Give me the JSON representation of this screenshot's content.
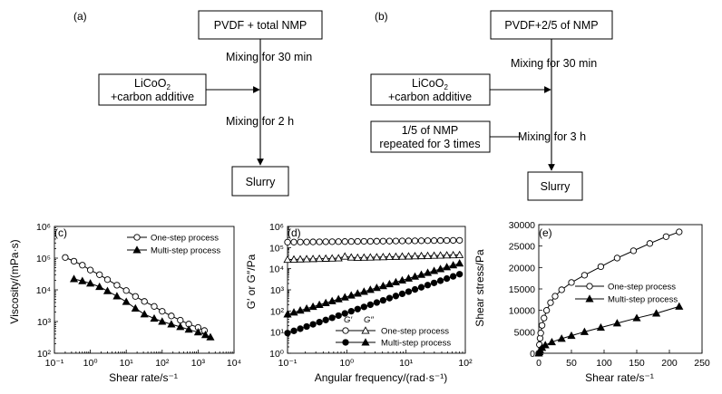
{
  "flowcharts": [
    {
      "panel_label": "(a)",
      "top_box": "PVDF + total NMP",
      "step1": "Mixing for 30 min",
      "side_box_1": [
        "LiCoO",
        "2",
        "+carbon additive"
      ],
      "step2": "Mixing for 2 h",
      "end_box": "Slurry"
    },
    {
      "panel_label": "(b)",
      "top_box": "PVDF+2/5 of NMP",
      "step1": "Mixing for 30 min",
      "side_box_1": [
        "LiCoO",
        "2",
        "+carbon additive"
      ],
      "side_box_2": [
        "1/5 of NMP",
        "repeated for 3 times"
      ],
      "step2": "Mixing for 3 h",
      "end_box": "Slurry"
    }
  ],
  "chart_data": [
    {
      "panel_label": "(c)",
      "type": "line",
      "xscale": "log",
      "yscale": "log",
      "xlim": [
        0.1,
        10000
      ],
      "ylim": [
        100,
        1000000
      ],
      "xlabel": "Shear rate/s⁻¹",
      "ylabel": "Viscosity/(mPa·s)",
      "xticks": [
        "10⁻¹",
        "10⁰",
        "10¹",
        "10²",
        "10³",
        "10⁴"
      ],
      "yticks": [
        "10²",
        "10³",
        "10⁴",
        "10⁵",
        "10⁶"
      ],
      "legend_position": "top-right",
      "series": [
        {
          "name": "One-step process",
          "marker": "open-circle",
          "x": [
            0.2,
            0.35,
            0.6,
            1,
            1.8,
            3,
            5.5,
            10,
            18,
            32,
            60,
            100,
            180,
            320,
            550,
            1000,
            1500
          ],
          "y": [
            105000,
            80000,
            60000,
            42000,
            30000,
            21000,
            14000,
            9500,
            6200,
            4300,
            3000,
            2100,
            1500,
            1100,
            830,
            650,
            520
          ]
        },
        {
          "name": "Multi-step process",
          "marker": "filled-triangle",
          "x": [
            0.35,
            0.6,
            1,
            1.8,
            3,
            5.5,
            10,
            18,
            32,
            60,
            100,
            180,
            320,
            550,
            1000,
            1600,
            2200
          ],
          "y": [
            22000,
            19000,
            16000,
            12500,
            9200,
            6300,
            4200,
            2600,
            1700,
            1250,
            1000,
            820,
            680,
            560,
            460,
            380,
            320
          ]
        }
      ]
    },
    {
      "panel_label": "(d)",
      "type": "line",
      "xscale": "log",
      "yscale": "log",
      "xlim": [
        0.1,
        100
      ],
      "ylim": [
        1,
        1000000
      ],
      "xlabel": "Angular frequency/(rad·s⁻¹)",
      "ylabel": "G′ or G″/Pa",
      "xticks": [
        "10⁻¹",
        "10⁰",
        "10¹",
        "10²"
      ],
      "yticks": [
        "10⁰",
        "10¹",
        "10²",
        "10³",
        "10⁴",
        "10⁵",
        "10⁶"
      ],
      "legend_position": "bottom-right",
      "legend_header": [
        "G′",
        "G″"
      ],
      "legend_rows": [
        "One-step process",
        "Multi-step process"
      ],
      "series": [
        {
          "name": "One-step process G′",
          "marker": "open-circle",
          "x_range": [
            0.1,
            80
          ],
          "y_start": 180000,
          "y_end": 220000
        },
        {
          "name": "One-step process G″",
          "marker": "open-triangle",
          "x_range": [
            0.1,
            80
          ],
          "y_start": 27000,
          "y_end": 45000,
          "bump_at": 1,
          "bump_value": 40000
        },
        {
          "name": "Multi-step process G′",
          "marker": "filled-circle",
          "x_range": [
            0.1,
            80
          ],
          "y_start": 9,
          "y_end": 5500
        },
        {
          "name": "Multi-step process G″",
          "marker": "filled-triangle",
          "x_range": [
            0.1,
            80
          ],
          "y_start": 70,
          "y_end": 18000
        }
      ]
    },
    {
      "panel_label": "(e)",
      "type": "line",
      "xscale": "linear",
      "yscale": "linear",
      "xlim": [
        0,
        250
      ],
      "ylim": [
        0,
        30000
      ],
      "xlabel": "Shear rate/s⁻¹",
      "ylabel": "Shear stress/Pa",
      "xticks": [
        "0",
        "50",
        "100",
        "150",
        "200",
        "250"
      ],
      "yticks": [
        "0",
        "5000",
        "10000",
        "15000",
        "20000",
        "25000",
        "30000"
      ],
      "legend_position": "center-right",
      "series": [
        {
          "name": "One-step process",
          "marker": "open-circle",
          "x": [
            0,
            1,
            2,
            3,
            5,
            8,
            12,
            18,
            25,
            35,
            50,
            70,
            95,
            120,
            145,
            170,
            195,
            215
          ],
          "y": [
            0,
            2000,
            3500,
            4700,
            6500,
            8200,
            10000,
            11800,
            13300,
            14800,
            16500,
            18200,
            20200,
            22200,
            23900,
            25600,
            27200,
            28300
          ]
        },
        {
          "name": "Multi-step process",
          "marker": "filled-triangle",
          "x": [
            0,
            1,
            2,
            5,
            10,
            20,
            35,
            50,
            70,
            95,
            120,
            150,
            180,
            215
          ],
          "y": [
            0,
            300,
            700,
            1300,
            1900,
            2600,
            3400,
            4100,
            5000,
            6000,
            7000,
            8200,
            9300,
            10900
          ]
        }
      ]
    }
  ]
}
